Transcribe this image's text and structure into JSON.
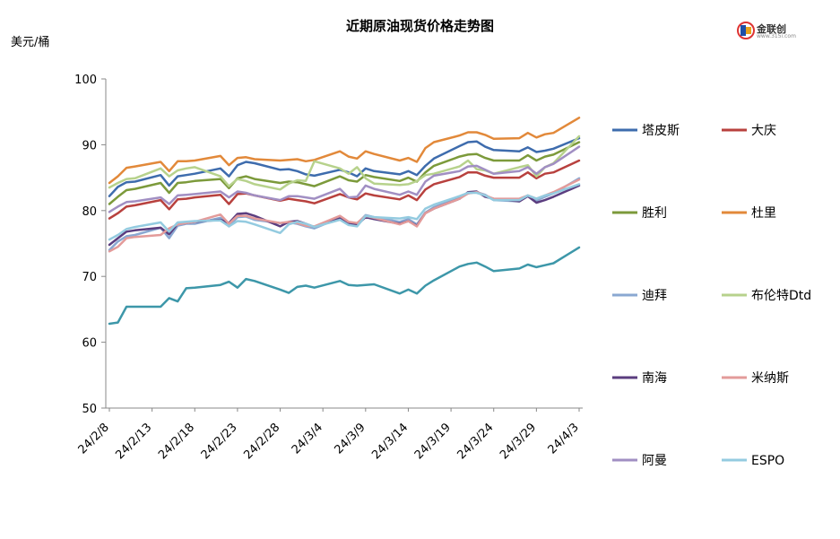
{
  "chart_data": {
    "type": "line",
    "title": "近期原油现货价格走势图",
    "ylabel": "美元/桶",
    "ylim": [
      50,
      100
    ],
    "yticks": [
      50,
      60,
      70,
      80,
      90,
      100
    ],
    "x_tick_labels": [
      "24/2/8",
      "24/2/13",
      "24/2/18",
      "24/2/23",
      "24/2/28",
      "24/3/4",
      "24/3/9",
      "24/3/14",
      "24/3/19",
      "24/3/24",
      "24/3/29",
      "24/4/3"
    ],
    "x_start": "2024-02-08",
    "x_end": "2024-04-03",
    "x": [
      "2024-02-08",
      "2024-02-09",
      "2024-02-10",
      "2024-02-11",
      "2024-02-14",
      "2024-02-15",
      "2024-02-16",
      "2024-02-17",
      "2024-02-18",
      "2024-02-21",
      "2024-02-22",
      "2024-02-23",
      "2024-02-24",
      "2024-02-25",
      "2024-02-28",
      "2024-02-29",
      "2024-03-01",
      "2024-03-02",
      "2024-03-03",
      "2024-03-06",
      "2024-03-07",
      "2024-03-08",
      "2024-03-09",
      "2024-03-10",
      "2024-03-13",
      "2024-03-14",
      "2024-03-15",
      "2024-03-16",
      "2024-03-17",
      "2024-03-20",
      "2024-03-21",
      "2024-03-22",
      "2024-03-23",
      "2024-03-24",
      "2024-03-27",
      "2024-03-28",
      "2024-03-29",
      "2024-03-30",
      "2024-03-31",
      "2024-04-03"
    ],
    "legend_position": "right",
    "grid": false,
    "series": [
      {
        "name": "塔皮斯",
        "color": "#3e6cad",
        "values": [
          82.2,
          83.6,
          84.3,
          84.4,
          85.4,
          83.8,
          85.2,
          85.4,
          85.6,
          86.4,
          85.2,
          86.9,
          87.4,
          87.2,
          86.2,
          86.3,
          86.0,
          85.5,
          85.3,
          86.2,
          85.8,
          85.2,
          86.4,
          86.0,
          85.5,
          86.0,
          85.4,
          86.8,
          87.9,
          89.8,
          90.4,
          90.5,
          89.7,
          89.2,
          89.0,
          89.6,
          88.9,
          89.1,
          89.4,
          91.0
        ]
      },
      {
        "name": "大庆",
        "color": "#b8413e",
        "values": [
          78.8,
          79.6,
          80.6,
          80.8,
          81.6,
          80.2,
          81.7,
          81.8,
          82.0,
          82.4,
          81.0,
          82.5,
          82.6,
          82.3,
          81.5,
          81.8,
          81.6,
          81.4,
          81.1,
          82.5,
          82.0,
          81.7,
          82.6,
          82.3,
          81.7,
          82.3,
          81.6,
          83.2,
          84.0,
          85.1,
          85.8,
          85.8,
          85.3,
          85.0,
          85.0,
          85.8,
          84.9,
          85.6,
          85.8,
          87.6
        ]
      },
      {
        "name": "胜利",
        "color": "#7c9a3b",
        "values": [
          81.0,
          82.1,
          83.1,
          83.3,
          84.2,
          82.7,
          84.2,
          84.3,
          84.5,
          84.8,
          83.4,
          84.9,
          85.2,
          84.8,
          84.2,
          84.4,
          84.3,
          84.0,
          83.7,
          85.2,
          84.6,
          84.4,
          85.4,
          85.1,
          84.5,
          85.0,
          84.4,
          85.8,
          86.8,
          88.2,
          88.5,
          88.6,
          88.0,
          87.6,
          87.6,
          88.4,
          87.6,
          88.2,
          88.5,
          90.4
        ]
      },
      {
        "name": "杜里",
        "color": "#e2893a",
        "values": [
          84.2,
          85.2,
          86.5,
          86.7,
          87.4,
          86.0,
          87.5,
          87.5,
          87.6,
          88.3,
          86.9,
          88.0,
          88.1,
          87.8,
          87.6,
          87.7,
          87.8,
          87.5,
          87.7,
          89.0,
          88.2,
          87.9,
          89.0,
          88.6,
          87.6,
          88.0,
          87.4,
          89.5,
          90.4,
          91.4,
          91.9,
          91.9,
          91.5,
          90.9,
          91.0,
          91.8,
          91.1,
          91.6,
          91.8,
          94.1
        ]
      },
      {
        "name": "迪拜",
        "color": "#8aa8d2",
        "values": [
          74.0,
          75.3,
          76.1,
          76.3,
          77.4,
          75.8,
          77.7,
          78.0,
          78.0,
          78.9,
          77.6,
          79.0,
          79.1,
          78.6,
          78.1,
          78.2,
          78.0,
          77.6,
          77.3,
          78.9,
          78.2,
          78.0,
          79.3,
          79.0,
          78.3,
          78.7,
          77.9,
          79.7,
          80.5,
          82.0,
          82.6,
          82.8,
          82.4,
          81.6,
          81.4,
          82.3,
          81.5,
          82.1,
          82.6,
          84.9
        ]
      },
      {
        "name": "布伦特Dtd",
        "color": "#b7d28c",
        "values": [
          83.5,
          84.2,
          84.8,
          84.9,
          86.4,
          85.2,
          86.1,
          86.4,
          86.6,
          85.2,
          83.7,
          84.8,
          84.5,
          84.0,
          83.2,
          84.1,
          84.6,
          84.5,
          87.5,
          86.4,
          85.6,
          86.6,
          84.9,
          84.1,
          83.9,
          84.0,
          84.5,
          85.4,
          85.6,
          86.7,
          87.6,
          86.3,
          86.1,
          85.6,
          86.6,
          86.9,
          85.2,
          86.6,
          87.2,
          91.3
        ]
      },
      {
        "name": "南海",
        "color": "#5b3d7f",
        "values": [
          74.8,
          75.8,
          76.8,
          77.0,
          77.4,
          76.4,
          78.0,
          78.1,
          78.3,
          78.6,
          78.1,
          79.5,
          79.6,
          79.2,
          77.6,
          78.3,
          78.4,
          78.0,
          77.5,
          78.8,
          78.1,
          77.8,
          79.0,
          78.7,
          78.0,
          78.4,
          77.7,
          79.6,
          80.3,
          81.8,
          82.8,
          82.9,
          82.1,
          81.8,
          81.4,
          82.2,
          81.2,
          81.6,
          82.1,
          83.8
        ]
      },
      {
        "name": "米纳斯",
        "color": "#e39b9a",
        "values": [
          73.8,
          74.5,
          75.8,
          76.0,
          76.3,
          77.3,
          77.9,
          78.1,
          78.3,
          79.4,
          78.0,
          79.2,
          79.2,
          78.8,
          78.1,
          78.3,
          78.1,
          77.7,
          77.6,
          79.2,
          78.3,
          78.1,
          79.2,
          78.9,
          77.9,
          78.4,
          77.6,
          79.6,
          80.3,
          81.8,
          82.6,
          82.8,
          82.3,
          81.8,
          81.8,
          82.3,
          81.8,
          82.3,
          82.8,
          84.7
        ]
      },
      {
        "name": "阿曼",
        "color": "#a18fc3",
        "values": [
          79.8,
          80.6,
          81.3,
          81.4,
          82.0,
          81.0,
          82.3,
          82.4,
          82.5,
          82.9,
          82.0,
          82.9,
          82.7,
          82.3,
          81.6,
          82.2,
          82.2,
          82.0,
          81.8,
          83.3,
          82.0,
          82.1,
          83.8,
          83.3,
          82.4,
          82.9,
          82.4,
          84.4,
          85.3,
          86.0,
          86.7,
          86.8,
          86.2,
          85.6,
          86.0,
          86.6,
          85.6,
          86.6,
          87.1,
          89.7
        ]
      },
      {
        "name": "ESPO",
        "color": "#94cbe0",
        "values": [
          75.6,
          76.3,
          77.2,
          77.5,
          78.2,
          76.8,
          78.2,
          78.3,
          78.4,
          78.5,
          77.6,
          78.4,
          78.3,
          77.9,
          76.6,
          77.9,
          78.3,
          78.0,
          77.5,
          78.6,
          77.8,
          77.6,
          79.2,
          79.0,
          78.8,
          79.0,
          78.7,
          80.3,
          80.9,
          82.2,
          82.7,
          82.7,
          82.3,
          81.6,
          81.6,
          82.3,
          81.8,
          82.3,
          82.6,
          84.0
        ]
      },
      {
        "name": "",
        "color": "#3d97a9",
        "values": [
          62.8,
          63.0,
          65.4,
          65.4,
          65.4,
          66.7,
          66.2,
          68.2,
          68.3,
          68.7,
          69.2,
          68.3,
          69.6,
          69.3,
          68.0,
          67.5,
          68.4,
          68.6,
          68.3,
          69.3,
          68.7,
          68.6,
          68.7,
          68.8,
          67.4,
          68.0,
          67.4,
          68.6,
          69.4,
          71.5,
          71.9,
          72.1,
          71.5,
          70.8,
          71.2,
          71.8,
          71.4,
          71.7,
          72.0,
          74.4
        ]
      }
    ]
  },
  "brand": {
    "name": "金联创",
    "url": "www.315i.com"
  }
}
